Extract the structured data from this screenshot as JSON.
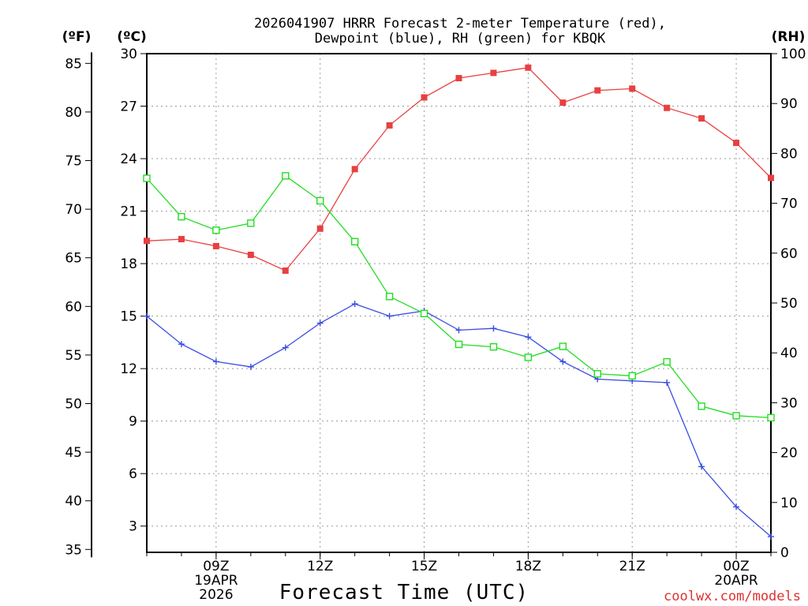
{
  "chart_data": {
    "type": "line",
    "title_line1": "2026041907 HRRR Forecast 2-meter Temperature (red),",
    "title_line2": "Dewpoint (blue), RH (green) for KBQK",
    "xlabel": "Forecast Time (UTC)",
    "credit": "coolwx.com/models",
    "units": {
      "fahrenheit": "(ºF)",
      "celsius": "(ºC)",
      "rh": "(RH)"
    },
    "x_hours": [
      7,
      8,
      9,
      10,
      11,
      12,
      13,
      14,
      15,
      16,
      17,
      18,
      19,
      20,
      21,
      22,
      23,
      24,
      25
    ],
    "xlim": [
      7,
      25
    ],
    "x_ticks": [
      {
        "hour": 9,
        "lines": [
          "09Z",
          "19APR",
          "2026"
        ]
      },
      {
        "hour": 12,
        "lines": [
          "12Z"
        ]
      },
      {
        "hour": 15,
        "lines": [
          "15Z"
        ]
      },
      {
        "hour": 18,
        "lines": [
          "18Z"
        ]
      },
      {
        "hour": 21,
        "lines": [
          "21Z"
        ]
      },
      {
        "hour": 24,
        "lines": [
          "00Z",
          "20APR"
        ]
      }
    ],
    "celsius_axis": {
      "range": [
        1.5,
        30
      ],
      "ticks": [
        "3",
        "6",
        "9",
        "12",
        "15",
        "18",
        "21",
        "24",
        "27",
        "30"
      ]
    },
    "fahrenheit_axis": {
      "range": [
        34.7,
        86
      ],
      "ticks": [
        "35",
        "40",
        "45",
        "50",
        "55",
        "60",
        "65",
        "70",
        "75",
        "80",
        "85"
      ]
    },
    "rh_axis": {
      "range": [
        0,
        100
      ],
      "ticks": [
        "0",
        "10",
        "20",
        "30",
        "40",
        "50",
        "60",
        "70",
        "80",
        "90",
        "100"
      ]
    },
    "series": [
      {
        "name": "Temperature",
        "axis": "celsius",
        "color": "#e84040",
        "marker": "filled-square",
        "values": [
          19.3,
          19.4,
          19.0,
          18.5,
          17.6,
          20.0,
          23.4,
          25.9,
          27.5,
          28.6,
          28.9,
          29.2,
          27.2,
          27.9,
          28.0,
          26.9,
          26.3,
          24.9,
          22.9
        ]
      },
      {
        "name": "Dewpoint",
        "axis": "celsius",
        "color": "#3a4de0",
        "marker": "plus",
        "values": [
          15.0,
          13.4,
          12.4,
          12.1,
          13.2,
          14.6,
          15.7,
          15.0,
          15.3,
          14.2,
          14.3,
          13.8,
          12.4,
          11.4,
          11.3,
          11.2,
          6.4,
          4.1,
          2.4
        ]
      },
      {
        "name": "Relative Humidity",
        "axis": "rh",
        "color": "#22dd22",
        "marker": "open-square",
        "values": [
          75.0,
          67.3,
          64.6,
          66.0,
          75.5,
          70.5,
          62.3,
          51.3,
          47.9,
          41.7,
          41.2,
          39.1,
          41.3,
          35.8,
          35.4,
          38.2,
          29.3,
          27.4,
          27.0
        ]
      }
    ]
  }
}
